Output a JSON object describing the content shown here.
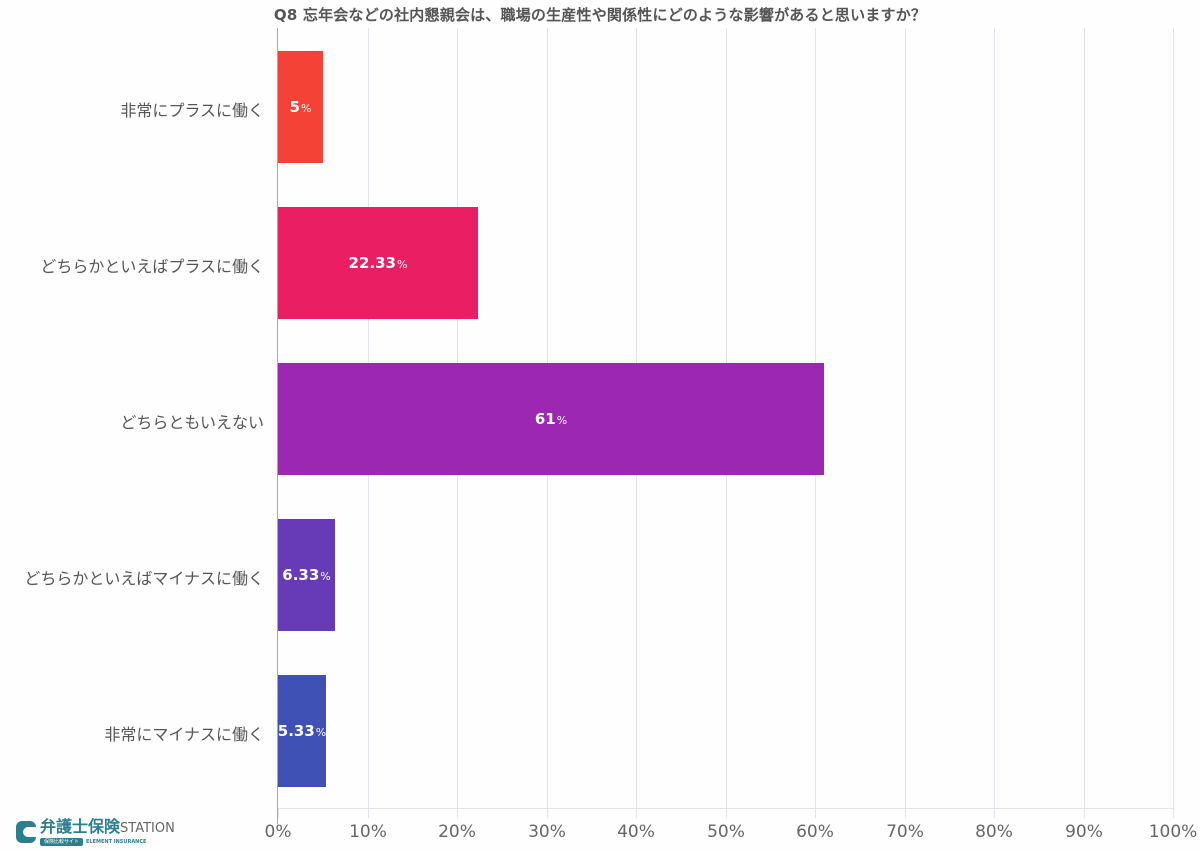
{
  "chart_data": {
    "type": "bar",
    "orientation": "horizontal",
    "title": "Q8 忘年会などの社内懇親会は、職場の生産性や関係性にどのような影響があると思いますか？",
    "categories": [
      "非常にプラスに働く",
      "どちらかといえばプラスに働く",
      "どちらともいえない",
      "どちらかといえばマイナスに働く",
      "非常にマイナスに働く"
    ],
    "values": [
      5,
      22.33,
      61,
      6.33,
      5.33
    ],
    "value_labels": [
      "5",
      "22.33",
      "61",
      "6.33",
      "5.33"
    ],
    "value_suffix": "%",
    "colors": [
      "#f44336",
      "#e91e63",
      "#9c27b0",
      "#673ab7",
      "#3f51b5"
    ],
    "xlabel": "",
    "ylabel": "",
    "xlim": [
      0,
      100
    ],
    "xticks": [
      "0%",
      "10%",
      "20%",
      "30%",
      "40%",
      "50%",
      "60%",
      "70%",
      "80%",
      "90%",
      "100%"
    ],
    "grid": true,
    "legend": null
  },
  "logo": {
    "main": "弁護士保険",
    "station": "STATION",
    "badge": "保険比較サイト",
    "english": "ELEMENT INSURANCE"
  }
}
